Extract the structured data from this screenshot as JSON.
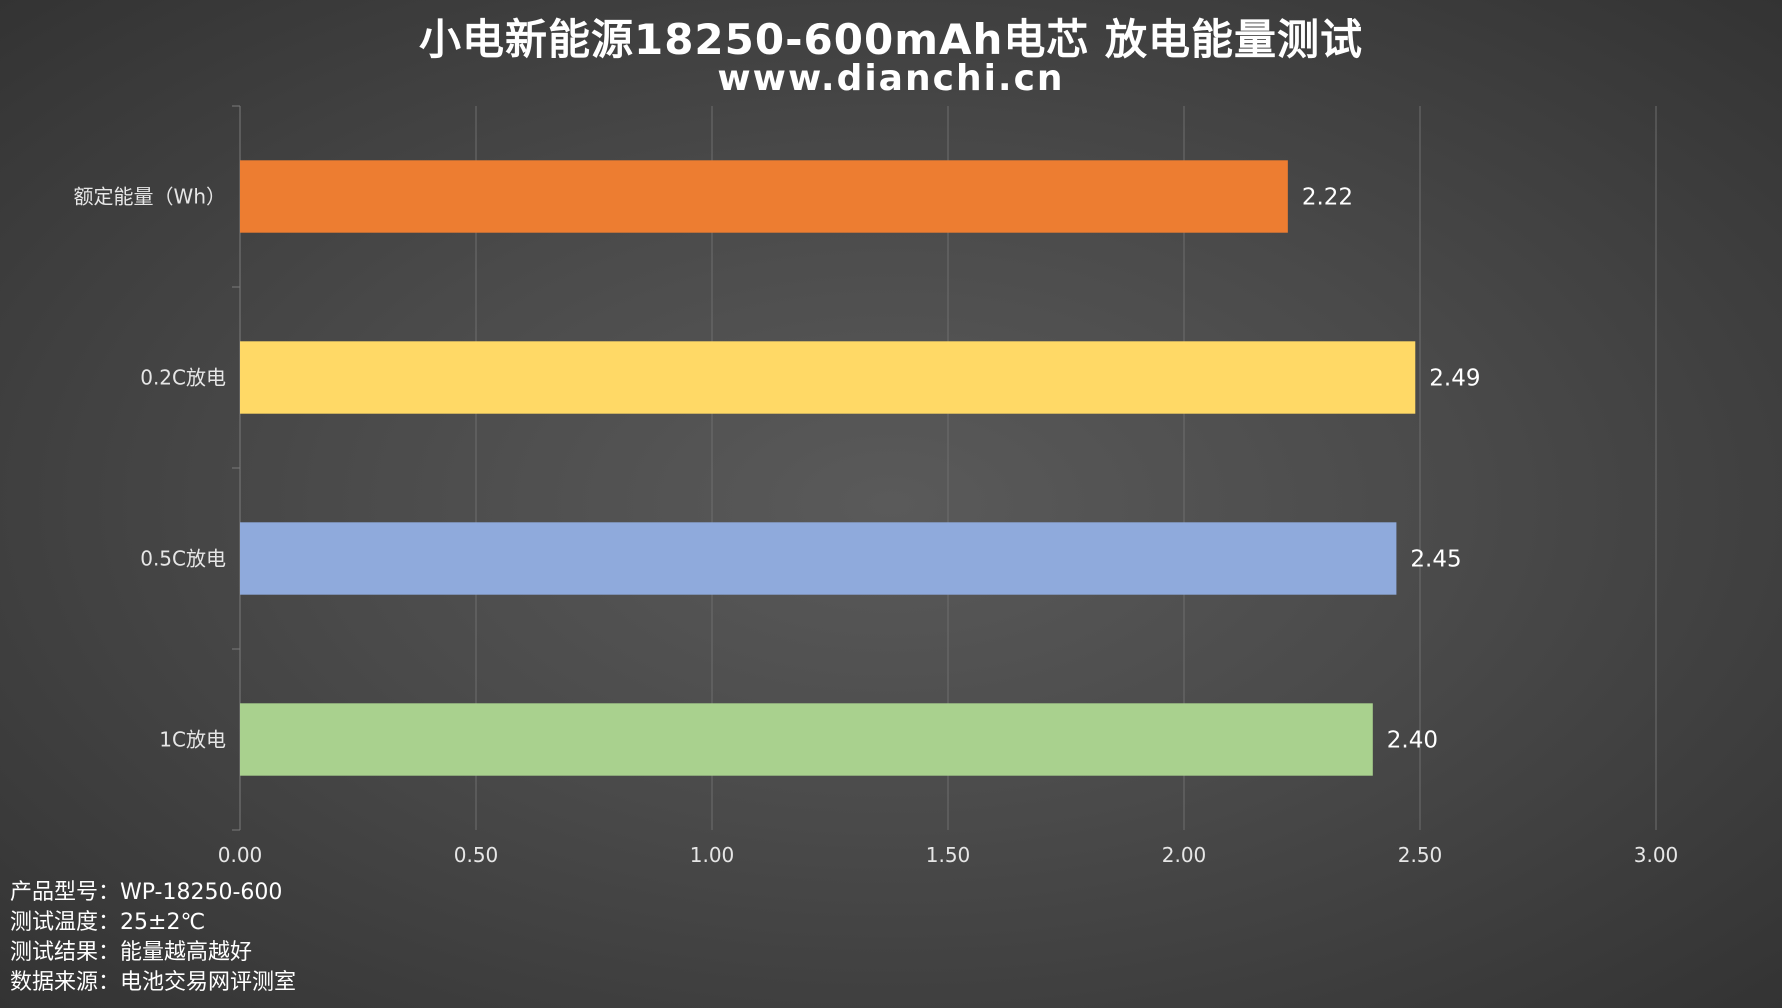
{
  "chart_data": {
    "type": "bar",
    "orientation": "horizontal",
    "title": "小电新能源18250-600mAh电芯 放电能量测试",
    "subtitle": "www.dianchi.cn",
    "categories": [
      "额定能量（Wh）",
      "0.2C放电",
      "0.5C放电",
      "1C放电"
    ],
    "values": [
      2.22,
      2.49,
      2.45,
      2.4
    ],
    "data_labels": [
      "2.22",
      "2.49",
      "2.45",
      "2.40"
    ],
    "colors": [
      "#ed7d31",
      "#ffd966",
      "#8faadc",
      "#a9d18e"
    ],
    "xlim": [
      0,
      3
    ],
    "x_ticks": [
      0,
      0.5,
      1,
      1.5,
      2,
      2.5,
      3
    ],
    "x_tick_labels": [
      "0.00",
      "0.50",
      "1.00",
      "1.50",
      "2.00",
      "2.50",
      "3.00"
    ],
    "grid": "vertical",
    "legend": "none"
  },
  "notes": [
    {
      "label": "产品型号：",
      "value": "WP-18250-600"
    },
    {
      "label": "测试温度：",
      "value": "25±2℃"
    },
    {
      "label": "测试结果：",
      "value": "能量越高越好"
    },
    {
      "label": "数据来源：",
      "value": "电池交易网评测室"
    }
  ]
}
